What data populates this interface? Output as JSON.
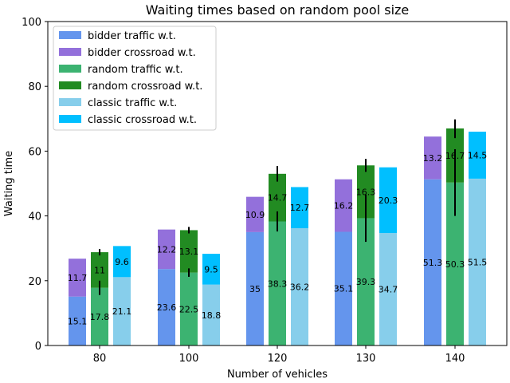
{
  "chart_data": {
    "type": "bar",
    "title": "Waiting times based on random pool size",
    "xlabel": "Number of vehicles",
    "ylabel": "Waiting time",
    "ylim": [
      0,
      100
    ],
    "yticks": [
      0,
      20,
      40,
      60,
      80,
      100
    ],
    "categories": [
      "80",
      "100",
      "120",
      "130",
      "140"
    ],
    "grid": false,
    "legend_position": "top-left",
    "groups": [
      {
        "name": "bidder",
        "traffic": {
          "name": "bidder traffic w.t.",
          "color": "#6495ED",
          "values": [
            15.1,
            23.6,
            35,
            35.1,
            51.3
          ]
        },
        "crossroad": {
          "name": "bidder crossroad w.t.",
          "color": "#9370DB",
          "values": [
            11.7,
            12.2,
            10.9,
            16.2,
            13.2
          ]
        },
        "error": null
      },
      {
        "name": "random",
        "traffic": {
          "name": "random traffic w.t.",
          "color": "#3CB371",
          "values": [
            17.8,
            22.5,
            38.3,
            39.3,
            50.3
          ]
        },
        "crossroad": {
          "name": "random crossroad w.t.",
          "color": "#228B22",
          "values": [
            11,
            13.1,
            14.7,
            16.3,
            16.7
          ]
        },
        "error": {
          "total": [
            {
              "low": 27.8,
              "high": 29.8
            },
            {
              "low": 34.6,
              "high": 36.6
            },
            {
              "low": 50.6,
              "high": 55.4
            },
            {
              "low": 53.6,
              "high": 57.6
            },
            {
              "low": 64.0,
              "high": 69.8
            }
          ],
          "traffic": [
            {
              "low": 15.6,
              "high": 20.0
            },
            {
              "low": 21.2,
              "high": 23.8
            },
            {
              "low": 35.2,
              "high": 41.4
            },
            {
              "low": 32.0,
              "high": 46.6
            },
            {
              "low": 40.0,
              "high": 60.6
            }
          ]
        }
      },
      {
        "name": "classic",
        "traffic": {
          "name": "classic traffic w.t.",
          "color": "#87CEEB",
          "values": [
            21.1,
            18.8,
            36.2,
            34.7,
            51.5
          ]
        },
        "crossroad": {
          "name": "classic crossroad w.t.",
          "color": "#00BFFF",
          "values": [
            9.6,
            9.5,
            12.7,
            20.3,
            14.5
          ]
        },
        "error": null
      }
    ],
    "legend": [
      {
        "label": "bidder traffic w.t.",
        "color": "#6495ED"
      },
      {
        "label": "bidder crossroad w.t.",
        "color": "#9370DB"
      },
      {
        "label": "random traffic w.t.",
        "color": "#3CB371"
      },
      {
        "label": "random crossroad w.t.",
        "color": "#228B22"
      },
      {
        "label": "classic traffic w.t.",
        "color": "#87CEEB"
      },
      {
        "label": "classic crossroad w.t.",
        "color": "#00BFFF"
      }
    ]
  }
}
